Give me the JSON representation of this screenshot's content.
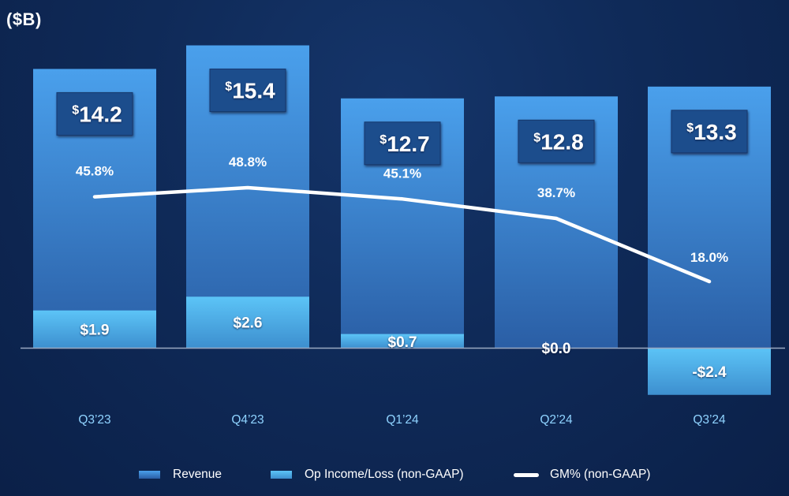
{
  "unit_label": "($B)",
  "colors": {
    "background": "#0f2a58",
    "revenue_top": "#4aa0ec",
    "revenue_bottom": "#2a5ea5",
    "op_top": "#5cc4f7",
    "op_bottom": "#3d8fcf",
    "label_box": "#1f4d8c",
    "line": "#ffffff",
    "axis": "#9aa9c2",
    "category_text": "#8fd3ff"
  },
  "chart_data": {
    "type": "bar",
    "title": "",
    "xlabel": "",
    "ylabel": "($B)",
    "categories": [
      "Q3’23",
      "Q4’23",
      "Q1’24",
      "Q2’24",
      "Q3’24"
    ],
    "series": [
      {
        "name": "Revenue",
        "type": "bar",
        "values": [
          14.2,
          15.4,
          12.7,
          12.8,
          13.3
        ],
        "labels": [
          "14.2",
          "15.4",
          "12.7",
          "12.8",
          "13.3"
        ],
        "label_prefix": "$"
      },
      {
        "name": "Op Income/Loss (non-GAAP)",
        "type": "bar",
        "values": [
          1.9,
          2.6,
          0.7,
          0.0,
          -2.4
        ],
        "labels": [
          "$1.9",
          "$2.6",
          "$0.7",
          "$0.0",
          "-$2.4"
        ]
      },
      {
        "name": "GM% (non-GAAP)",
        "type": "line",
        "values": [
          45.8,
          48.8,
          45.1,
          38.7,
          18.0
        ],
        "labels": [
          "45.8%",
          "48.8%",
          "45.1%",
          "38.7%",
          "18.0%"
        ]
      }
    ],
    "ylim": [
      -2.4,
      15.4
    ],
    "grid": false,
    "legend_position": "bottom"
  },
  "legend": {
    "revenue": "Revenue",
    "op_income": "Op Income/Loss (non-GAAP)",
    "gm": "GM% (non-GAAP)"
  }
}
